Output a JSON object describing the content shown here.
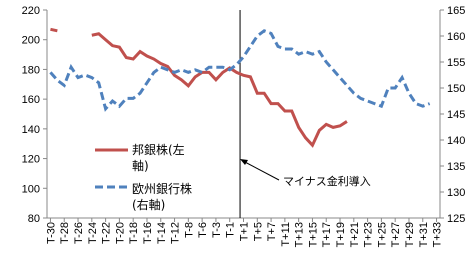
{
  "chart_data": {
    "type": "line",
    "categories": [
      "T-30",
      null,
      "T-28",
      null,
      "T-26",
      null,
      "T-24",
      null,
      "T-22",
      null,
      "T-20",
      null,
      "T-18",
      null,
      "T-16",
      null,
      "T-14",
      null,
      "T-12",
      null,
      "T-8",
      null,
      "T-6",
      null,
      "T-3",
      null,
      "T-1",
      null,
      "T+1",
      null,
      "T+5",
      null,
      "T+7",
      null,
      "T+11",
      null,
      "T+13",
      null,
      "T+15",
      null,
      "T+17",
      null,
      "T+19",
      null,
      "T+21",
      null,
      "T+23",
      null,
      "T+25",
      null,
      "T+27",
      null,
      "T+29",
      null,
      "T+31",
      null,
      "T+33"
    ],
    "series": [
      {
        "name": "邦銀株(左軸)",
        "color": "#c0504d",
        "axis": "y",
        "values": [
          207,
          206,
          null,
          null,
          null,
          null,
          203,
          204,
          200,
          196,
          195,
          188,
          187,
          192,
          189,
          187,
          184,
          182,
          176,
          173,
          169,
          175,
          178,
          178,
          173,
          178,
          181,
          178,
          176,
          175,
          164,
          164,
          157,
          157,
          152,
          152,
          141,
          134,
          129,
          139,
          143,
          141,
          142,
          145,
          null,
          null,
          null,
          null,
          null,
          null,
          null,
          null,
          null,
          null,
          null,
          null,
          null
        ]
      },
      {
        "name": "欧州銀行株(右軸)",
        "color": "#4f81bd",
        "axis": "y2",
        "dashed": true,
        "values": [
          153,
          151.5,
          150.5,
          154,
          152,
          152.5,
          152,
          151,
          146,
          147.5,
          146.5,
          148,
          148,
          149,
          151,
          153,
          154,
          153.5,
          153,
          153.5,
          153,
          153.5,
          153,
          154,
          154,
          154,
          153.5,
          154.5,
          156,
          158,
          160,
          161,
          160.5,
          158,
          157.5,
          157.5,
          156.5,
          157,
          156.5,
          157,
          155,
          153.5,
          152,
          150.5,
          149,
          148,
          147.5,
          147,
          146.5,
          150,
          150,
          152,
          149,
          147,
          146.5,
          147,
          null
        ]
      }
    ],
    "ylim": [
      80,
      220
    ],
    "yticks": [
      80,
      100,
      120,
      140,
      160,
      180,
      200,
      220
    ],
    "y2lim": [
      125,
      165
    ],
    "y2ticks": [
      125,
      130,
      135,
      140,
      145,
      150,
      155,
      160,
      165
    ],
    "annotation": "マイナス金利導入",
    "legend": "left"
  }
}
